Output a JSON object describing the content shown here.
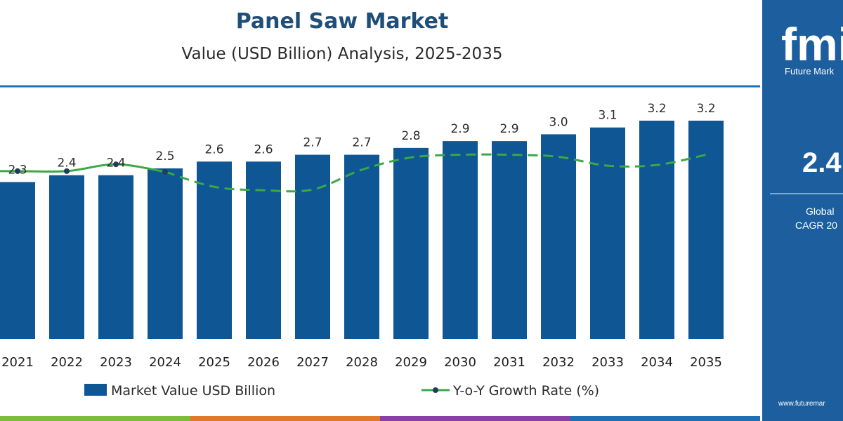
{
  "title": "Panel Saw Market",
  "subtitle": "Value (USD Billion) Analysis, 2025-2035",
  "colors": {
    "title": "#1f4e79",
    "bar": "#0f5694",
    "line": "#3aa845",
    "marker": "#1f3d5c",
    "side_panel": "#1d5f9e",
    "rule": "#1f6fb5",
    "footer_stripes": [
      "#7dbd3c",
      "#e07a2a",
      "#8a3fa8",
      "#1f6fb5"
    ]
  },
  "legend": {
    "bar_label": "Market Value USD Billion",
    "line_label": "Y-o-Y Growth Rate (%)",
    "position": "bottom"
  },
  "side_panel": {
    "logo_text": "fmi",
    "logo_caption": "Future Mark",
    "big_value": "2.4",
    "caption_line1": "Global",
    "caption_line2": "CAGR 20",
    "url": "www.futuremar"
  },
  "chart_data": {
    "type": "bar",
    "categories": [
      "2021",
      "2022",
      "2023",
      "2024",
      "2025",
      "2026",
      "2027",
      "2028",
      "2029",
      "2030",
      "2031",
      "2032",
      "2033",
      "2034",
      "2035"
    ],
    "series": [
      {
        "name": "Market Value USD Billion",
        "type": "bar",
        "values": [
          2.3,
          2.4,
          2.4,
          2.5,
          2.6,
          2.6,
          2.7,
          2.7,
          2.8,
          2.9,
          2.9,
          3.0,
          3.1,
          3.2,
          3.2
        ],
        "labels": [
          "2.3",
          "2.4",
          "2.4",
          "2.5",
          "2.6",
          "2.6",
          "2.7",
          "2.7",
          "2.8",
          "2.9",
          "2.9",
          "3.0",
          "3.1",
          "3.2",
          "3.2"
        ]
      },
      {
        "name": "Y-o-Y Growth Rate (%)",
        "type": "line",
        "values": [
          2.46,
          2.46,
          2.56,
          2.45,
          2.23,
          2.18,
          2.19,
          2.48,
          2.66,
          2.7,
          2.7,
          2.67,
          2.54,
          2.55,
          2.7
        ],
        "solid_through_index": 3
      }
    ],
    "ylim": [
      0,
      3.3
    ],
    "growth_ylim": [
      0,
      3.3
    ],
    "grid": false
  }
}
